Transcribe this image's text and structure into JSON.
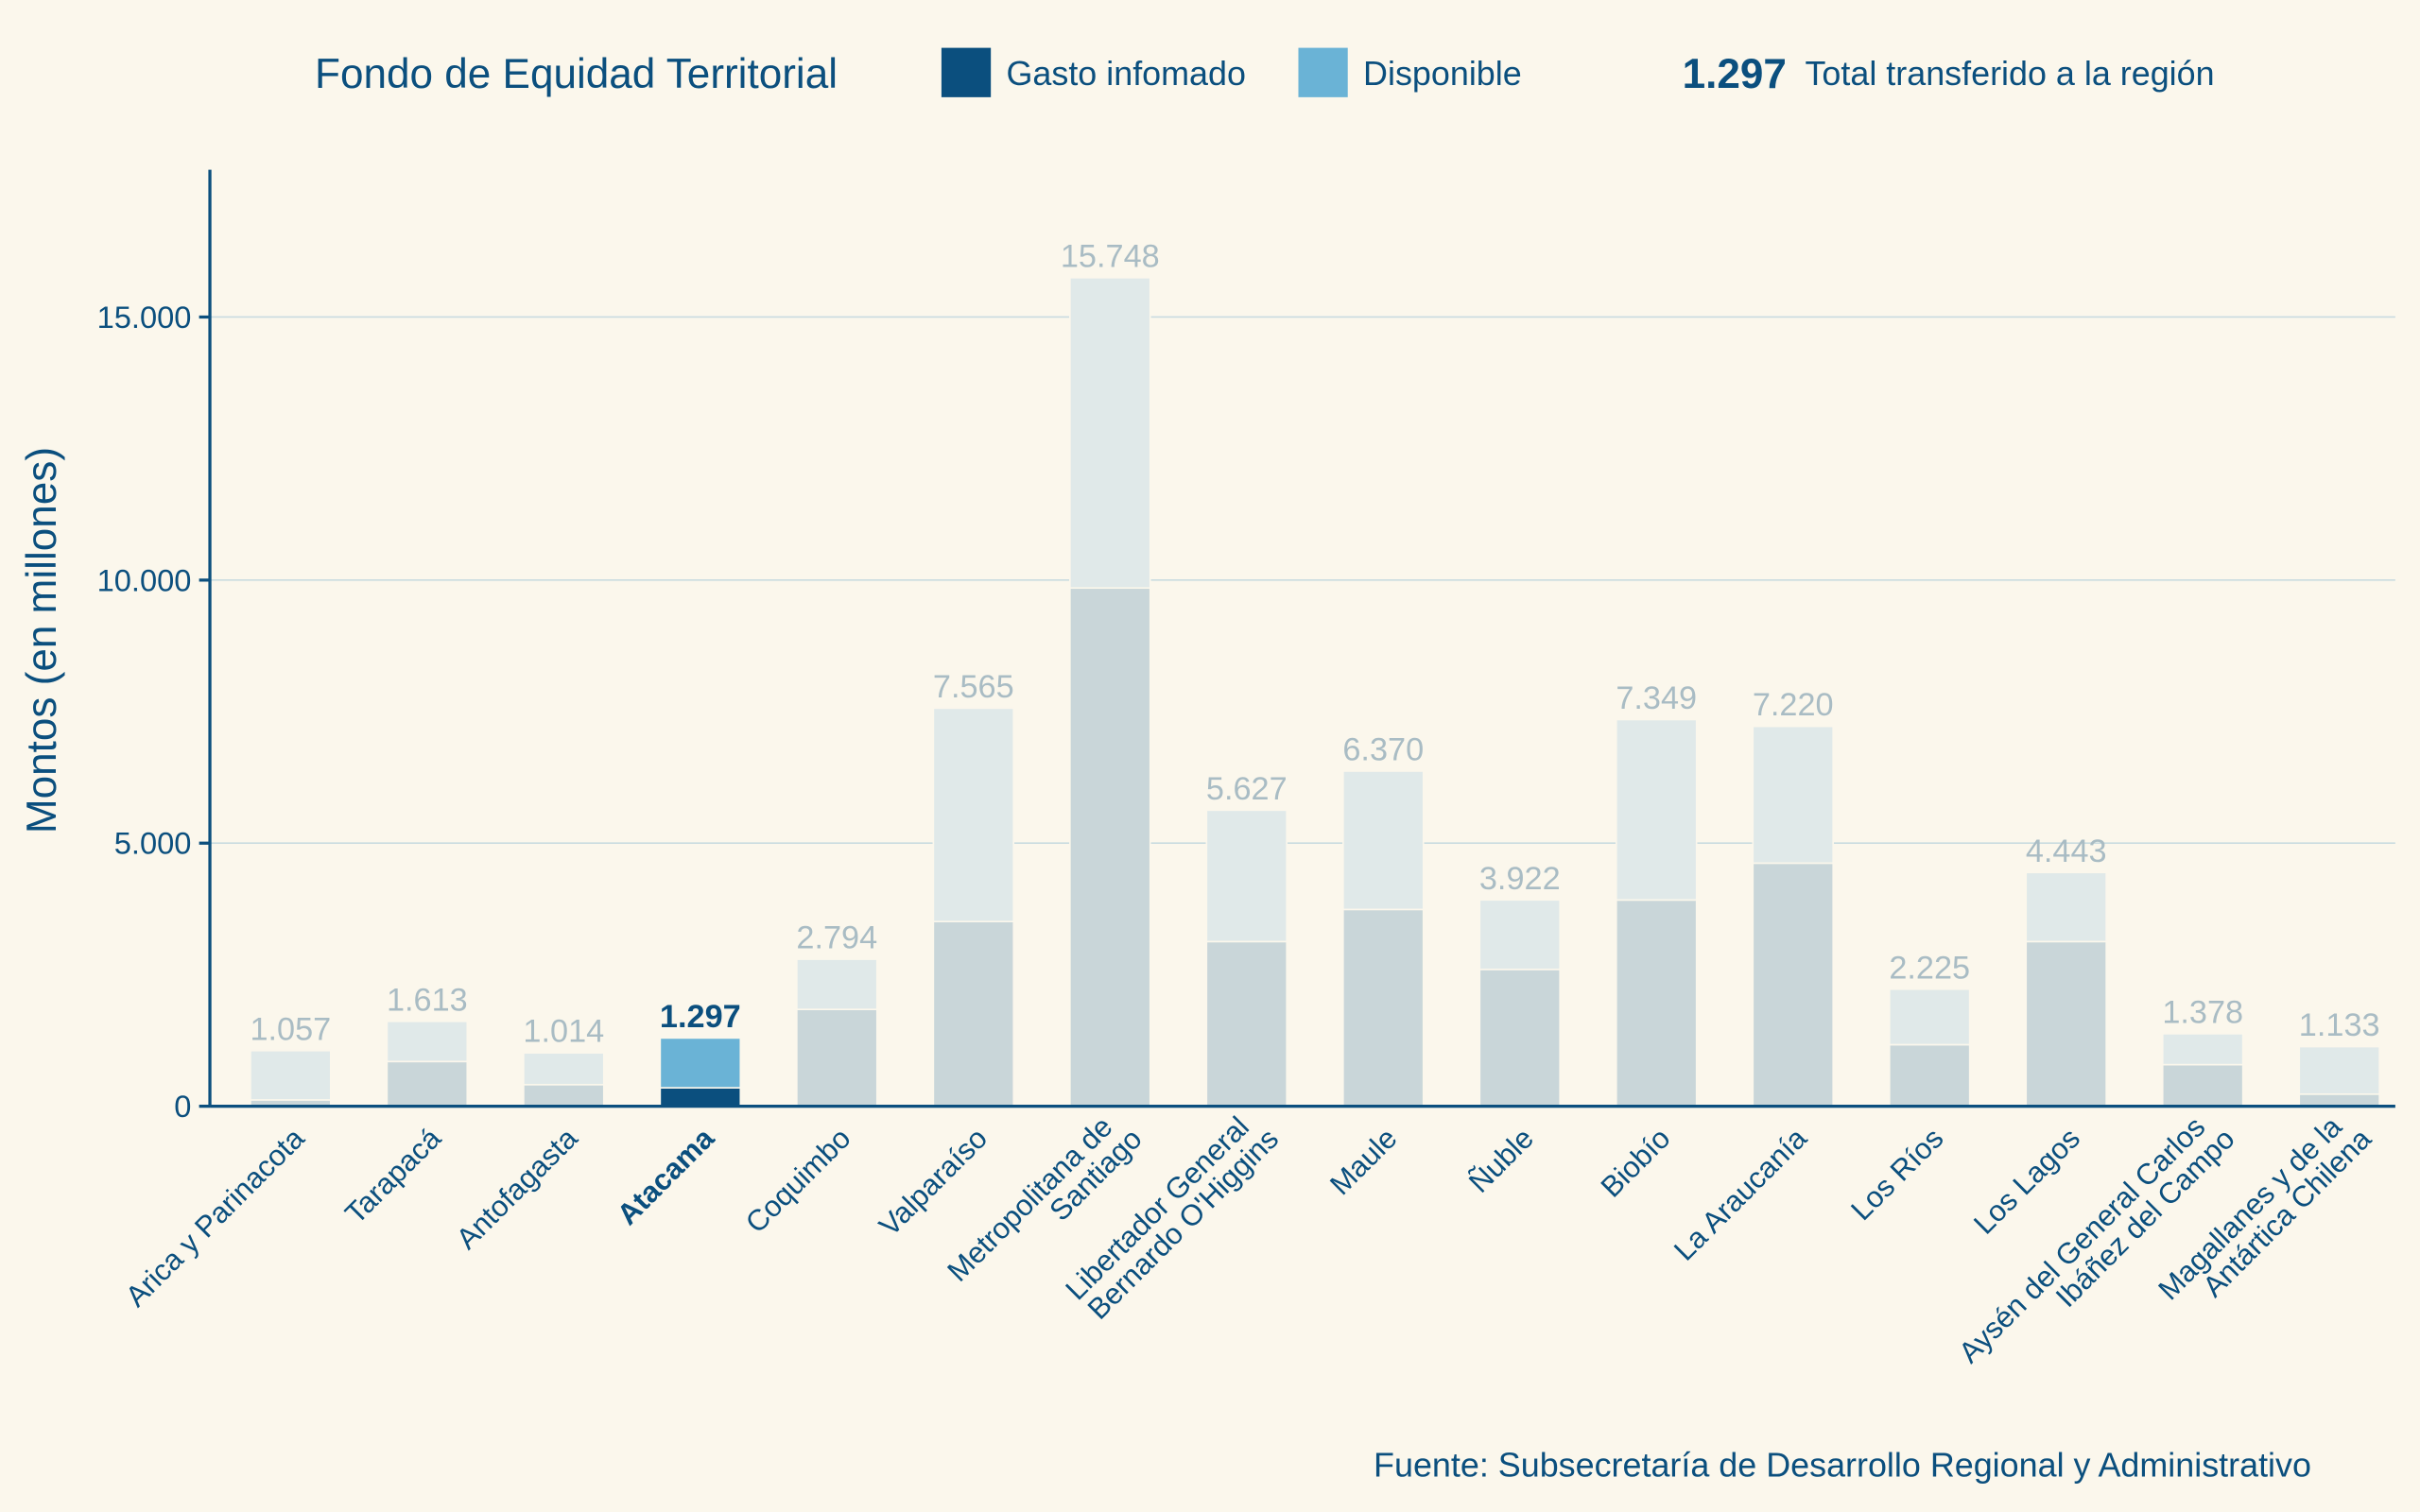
{
  "chart_data": {
    "type": "stacked-bar",
    "title": "Fondo de Equidad Territorial",
    "y_label": "Montos (en millones)",
    "source": "Fuente: Subsecretaría de Desarrollo Regional y Administrativo",
    "total_legend": "Total transferido a la región",
    "categories": [
      "Arica y Parinacota",
      "Tarapacá",
      "Antofagasta",
      "Atacama",
      "Coquimbo",
      "Valparaíso",
      "Metropolitana de\nSantiago",
      "Libertador General\nBernardo O'Higgins",
      "Maule",
      "Ñuble",
      "Biobío",
      "La Araucanía",
      "Los Ríos",
      "Los Lagos",
      "Aysén del General Carlos\nIbáñez del Campo",
      "Magallanes y de la\nAntártica Chilena"
    ],
    "highlight_index": 3,
    "series": [
      {
        "name": "Gasto infomado",
        "color": "#0b4f7e",
        "muted_color": "#c9d6d9",
        "values": [
          120,
          850,
          410,
          350,
          1840,
          3510,
          9850,
          3130,
          3740,
          2600,
          3920,
          4620,
          1170,
          3130,
          790,
          230
        ]
      },
      {
        "name": "Disponible",
        "color": "#6ab3d6",
        "muted_color": "#e0e9e9",
        "values": [
          937,
          763,
          604,
          947,
          954,
          4055,
          5898,
          2497,
          2630,
          1322,
          3429,
          2600,
          1055,
          1313,
          588,
          903
        ]
      }
    ],
    "totals": {
      "values": [
        1057,
        1613,
        1014,
        1297,
        2794,
        7565,
        15748,
        5627,
        6370,
        3922,
        7349,
        7220,
        2225,
        4443,
        1378,
        1133
      ],
      "value_labels": [
        "1.057",
        "1.613",
        "1.014",
        "1.297",
        "2.794",
        "7.565",
        "15.748",
        "5.627",
        "6.370",
        "3.922",
        "7.349",
        "7.220",
        "2.225",
        "4.443",
        "1.378",
        "1.133"
      ]
    },
    "ylim": [
      0,
      17800
    ],
    "yticks": [
      0,
      {
        "value": 5000,
        "label": "5.000"
      },
      {
        "value": 10000,
        "label": "10.000"
      },
      {
        "value": 15000,
        "label": "15.000"
      }
    ],
    "grid": true
  }
}
